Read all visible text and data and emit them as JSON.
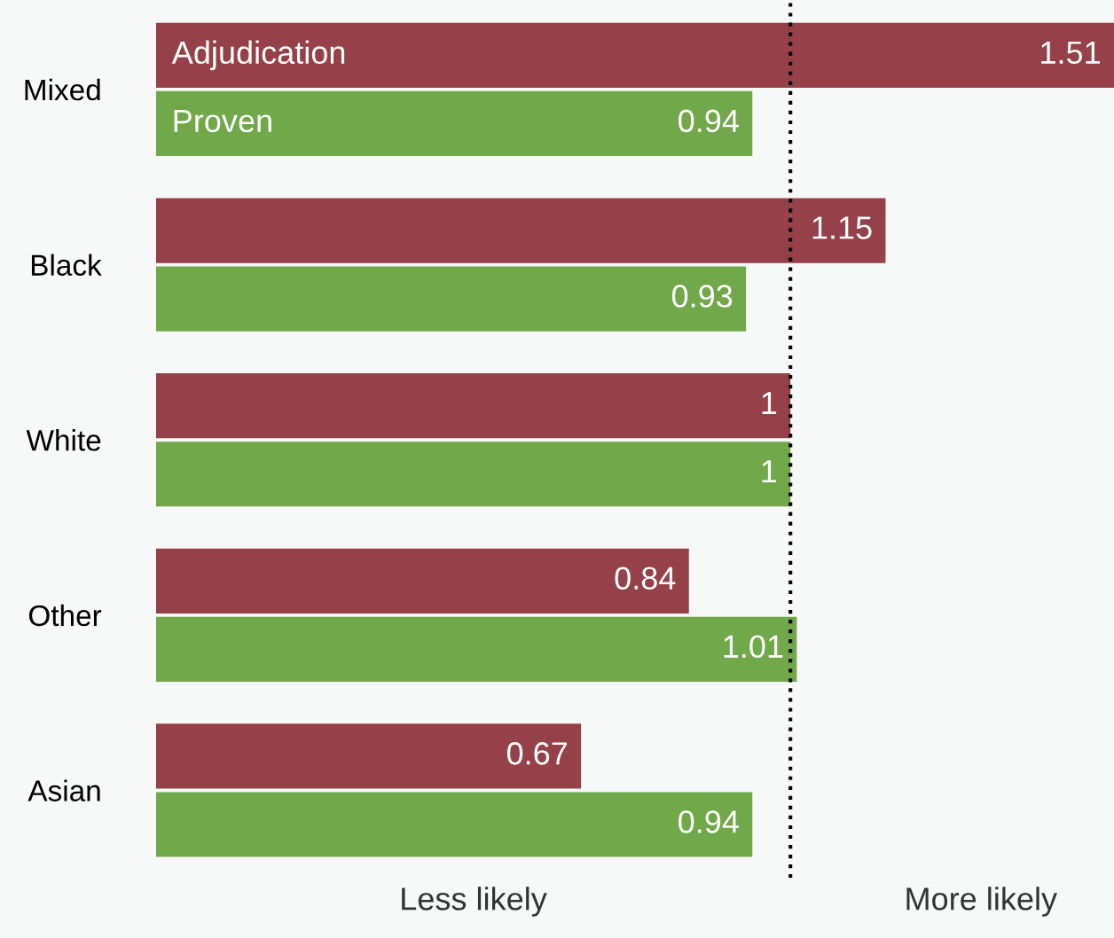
{
  "chart_data": {
    "type": "bar",
    "orientation": "horizontal",
    "categories": [
      "Mixed",
      "Black",
      "White",
      "Other",
      "Asian"
    ],
    "series": [
      {
        "name": "Adjudication",
        "color": "#96414a",
        "values": [
          1.51,
          1.15,
          1,
          0.84,
          0.67
        ]
      },
      {
        "name": "Proven",
        "color": "#70a84a",
        "values": [
          0.94,
          0.93,
          1,
          1.01,
          0.94
        ]
      }
    ],
    "xlim": [
      0,
      1.51
    ],
    "data_labels": true,
    "ref_lines": [
      {
        "axis": "x",
        "value": 1,
        "line_style": "dotted",
        "color": "#000000"
      }
    ],
    "annotations": [
      "Less likely",
      "More likely"
    ],
    "tick_labels": "y",
    "grid": false,
    "legend": false
  }
}
